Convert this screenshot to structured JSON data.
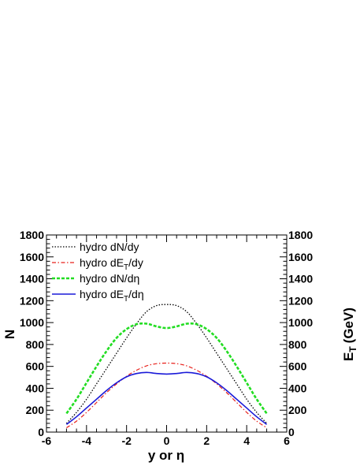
{
  "chart_data": {
    "type": "line",
    "xlabel": "y or η",
    "ylabel_left": "N",
    "ylabel_right": "E",
    "ylabel_right_sub": "T",
    "ylabel_right_unit": "(GeV)",
    "xlim": [
      -6,
      6
    ],
    "ylim_left": [
      0,
      1800
    ],
    "ylim_right": [
      0,
      1800
    ],
    "grid": false,
    "legend_position": "top-left",
    "x_ticks": [
      -6,
      -4,
      -2,
      0,
      2,
      4,
      6
    ],
    "y_ticks": [
      0,
      200,
      400,
      600,
      800,
      1000,
      1200,
      1400,
      1600,
      1800
    ],
    "series": [
      {
        "name": "hydro dN/dy",
        "label_pre": "hydro dN/dy",
        "label_sub": "",
        "label_post": "",
        "color": "#000000",
        "style": "dotted",
        "x": [
          -5,
          -4.5,
          -4,
          -3.5,
          -3,
          -2.5,
          -2,
          -1.5,
          -1,
          -0.5,
          0,
          0.5,
          1,
          1.5,
          2,
          2.5,
          3,
          3.5,
          4,
          4.5,
          5
        ],
        "y": [
          80,
          180,
          300,
          440,
          580,
          720,
          860,
          990,
          1100,
          1155,
          1165,
          1155,
          1100,
          990,
          860,
          720,
          580,
          440,
          300,
          180,
          80
        ]
      },
      {
        "name": "hydro dE_T/dy",
        "label_pre": "hydro dE",
        "label_sub": "T",
        "label_post": "/dy",
        "color": "#e8211b",
        "style": "dashdot",
        "x": [
          -5,
          -4.5,
          -4,
          -3.5,
          -3,
          -2.5,
          -2,
          -1.5,
          -1,
          -0.5,
          0,
          0.5,
          1,
          1.5,
          2,
          2.5,
          3,
          3.5,
          4,
          4.5,
          5
        ],
        "y": [
          40,
          100,
          180,
          270,
          360,
          440,
          510,
          565,
          605,
          625,
          630,
          625,
          605,
          565,
          510,
          440,
          360,
          270,
          180,
          100,
          40
        ]
      },
      {
        "name": "hydro dN/dη",
        "label_pre": "hydro dN/dη",
        "label_sub": "",
        "label_post": "",
        "color": "#22dd22",
        "style": "dashed",
        "x": [
          -5,
          -4.5,
          -4,
          -3.5,
          -3,
          -2.5,
          -2,
          -1.5,
          -1,
          -0.5,
          0,
          0.5,
          1,
          1.5,
          2,
          2.5,
          3,
          3.5,
          4,
          4.5,
          5
        ],
        "y": [
          170,
          300,
          450,
          600,
          740,
          860,
          940,
          985,
          990,
          965,
          950,
          965,
          990,
          985,
          940,
          860,
          740,
          600,
          450,
          300,
          170
        ]
      },
      {
        "name": "hydro dE_T/dη",
        "label_pre": "hydro dE",
        "label_sub": "T",
        "label_post": "/dη",
        "color": "#1a1ad8",
        "style": "solid",
        "x": [
          -5,
          -4.5,
          -4,
          -3.5,
          -3,
          -2.5,
          -2,
          -1.5,
          -1,
          -0.5,
          0,
          0.5,
          1,
          1.5,
          2,
          2.5,
          3,
          3.5,
          4,
          4.5,
          5
        ],
        "y": [
          70,
          140,
          220,
          300,
          380,
          450,
          505,
          535,
          545,
          535,
          530,
          535,
          545,
          535,
          505,
          450,
          380,
          300,
          220,
          140,
          70
        ]
      }
    ]
  }
}
